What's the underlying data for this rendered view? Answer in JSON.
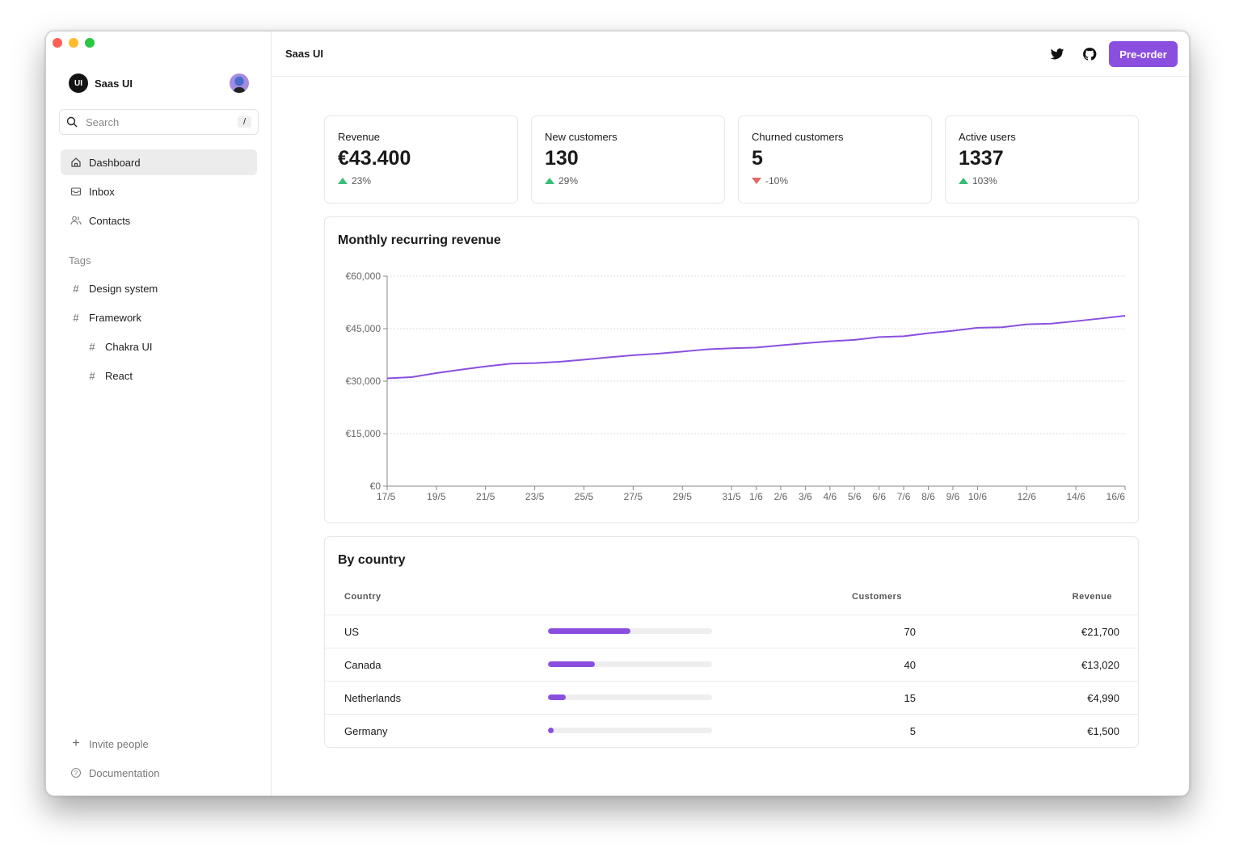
{
  "window": {
    "traffic_lights": [
      "#ff5f57",
      "#febc2e",
      "#28c840"
    ]
  },
  "sidebar": {
    "brand": "Saas UI",
    "logo_text": "UI",
    "search": {
      "placeholder": "Search",
      "shortcut": "/"
    },
    "nav": [
      {
        "label": "Dashboard",
        "icon": "home-icon",
        "active": true
      },
      {
        "label": "Inbox",
        "icon": "inbox-icon"
      },
      {
        "label": "Contacts",
        "icon": "users-icon"
      }
    ],
    "tags_heading": "Tags",
    "tags": [
      {
        "label": "Design system"
      },
      {
        "label": "Framework"
      },
      {
        "label": "Chakra UI"
      },
      {
        "label": "React"
      }
    ],
    "footer": [
      {
        "label": "Invite people",
        "icon": "plus-icon"
      },
      {
        "label": "Documentation",
        "icon": "help-circle-icon"
      }
    ]
  },
  "header": {
    "title": "Saas UI",
    "preorder": "Pre-order",
    "accent": "#8b4fdf"
  },
  "stats": [
    {
      "label": "Revenue",
      "value": "€43.400",
      "change": "23%",
      "trend": "up"
    },
    {
      "label": "New customers",
      "value": "130",
      "change": "29%",
      "trend": "up"
    },
    {
      "label": "Churned customers",
      "value": "5",
      "change": "-10%",
      "trend": "down"
    },
    {
      "label": "Active users",
      "value": "1337",
      "change": "103%",
      "trend": "up"
    }
  ],
  "chart_data": {
    "type": "line",
    "title": "Monthly recurring revenue",
    "xlabel": "",
    "ylabel": "",
    "ylim": [
      0,
      60000
    ],
    "yticks": [
      "€0",
      "€15,000",
      "€30,000",
      "€45,000",
      "€60,000"
    ],
    "ytick_values": [
      0,
      15000,
      30000,
      45000,
      60000
    ],
    "grid": true,
    "color": "#8b4fdf",
    "x": [
      "17/5",
      "18/5",
      "19/5",
      "20/5",
      "21/5",
      "22/5",
      "23/5",
      "24/5",
      "25/5",
      "26/5",
      "27/5",
      "28/5",
      "29/5",
      "30/5",
      "31/5",
      "1/6",
      "2/6",
      "3/6",
      "4/6",
      "5/6",
      "6/6",
      "7/6",
      "8/6",
      "9/6",
      "10/6",
      "11/6",
      "12/6",
      "13/6",
      "14/6",
      "15/6",
      "16/6"
    ],
    "xtick_labels": [
      "17/5",
      "19/5",
      "21/5",
      "23/5",
      "25/5",
      "27/5",
      "29/5",
      "31/5",
      "1/6",
      "2/6",
      "3/6",
      "4/6",
      "5/6",
      "6/6",
      "7/6",
      "8/6",
      "9/6",
      "10/6",
      "12/6",
      "14/6",
      "16/6"
    ],
    "values": [
      30800,
      31150,
      32300,
      33300,
      34200,
      35000,
      35150,
      35550,
      36150,
      36800,
      37400,
      37850,
      38450,
      39100,
      39400,
      39600,
      40250,
      40850,
      41400,
      41800,
      42600,
      42850,
      43700,
      44400,
      45250,
      45400,
      46250,
      46450,
      47150,
      47900,
      48700
    ]
  },
  "by_country": {
    "title": "By country",
    "columns": [
      "Country",
      "Customers",
      "Revenue"
    ],
    "rows": [
      {
        "country": "US",
        "customers": "70",
        "revenue": "€21,700",
        "share": 50
      },
      {
        "country": "Canada",
        "customers": "40",
        "revenue": "€13,020",
        "share": 28.6
      },
      {
        "country": "Netherlands",
        "customers": "15",
        "revenue": "€4,990",
        "share": 10.7
      },
      {
        "country": "Germany",
        "customers": "5",
        "revenue": "€1,500",
        "share": 3.6
      }
    ]
  }
}
